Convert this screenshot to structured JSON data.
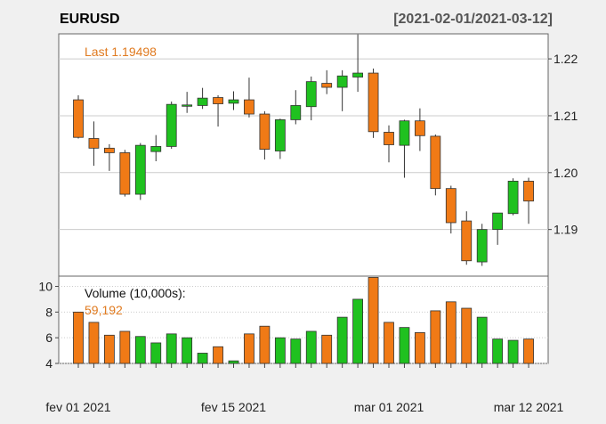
{
  "chart_data": {
    "type": "candlestick",
    "title": "EURUSD",
    "date_range": "[2021-02-01/2021-03-12]",
    "last_label": "Last 1.19498",
    "volume_label": "Volume (10,000s):",
    "volume_last": "59,192",
    "colors": {
      "up": "#1fc11f",
      "down": "#f07a16",
      "background": "#f0f0f0",
      "panel": "#ffffff",
      "grid": "#cccccc"
    },
    "price_axis": {
      "ticks": [
        1.19,
        1.2,
        1.21,
        1.22
      ],
      "tick_labels": [
        "1.19",
        "1.20",
        "1.21",
        "1.22"
      ],
      "range": [
        1.1818,
        1.2244
      ]
    },
    "volume_axis": {
      "ticks": [
        4,
        6,
        8,
        10
      ],
      "tick_labels": [
        "4",
        "6",
        "8",
        "10"
      ],
      "range": [
        4,
        10.8
      ]
    },
    "x_labels": [
      {
        "index": 0,
        "label": "fev 01 2021"
      },
      {
        "index": 10,
        "label": "fev 15 2021"
      },
      {
        "index": 20,
        "label": "mar 01 2021"
      },
      {
        "index": 29,
        "label": "mar 12 2021"
      }
    ],
    "candles": [
      {
        "date": "2021-02-01",
        "open": 1.2128,
        "high": 1.2136,
        "low": 1.206,
        "close": 1.2062,
        "volume": 8.0
      },
      {
        "date": "2021-02-02",
        "open": 1.206,
        "high": 1.209,
        "low": 1.2012,
        "close": 1.2043,
        "volume": 7.2
      },
      {
        "date": "2021-02-03",
        "open": 1.2043,
        "high": 1.205,
        "low": 1.2003,
        "close": 1.2035,
        "volume": 6.2
      },
      {
        "date": "2021-02-04",
        "open": 1.2035,
        "high": 1.204,
        "low": 1.1958,
        "close": 1.1962,
        "volume": 6.5
      },
      {
        "date": "2021-02-05",
        "open": 1.1962,
        "high": 1.2052,
        "low": 1.1952,
        "close": 1.2048,
        "volume": 6.1
      },
      {
        "date": "2021-02-08",
        "open": 1.2037,
        "high": 1.2066,
        "low": 1.202,
        "close": 1.2046,
        "volume": 5.6
      },
      {
        "date": "2021-02-09",
        "open": 1.2046,
        "high": 1.2125,
        "low": 1.2042,
        "close": 1.212,
        "volume": 6.3
      },
      {
        "date": "2021-02-10",
        "open": 1.2117,
        "high": 1.2142,
        "low": 1.2105,
        "close": 1.2119,
        "volume": 6.0
      },
      {
        "date": "2021-02-11",
        "open": 1.2118,
        "high": 1.2149,
        "low": 1.2112,
        "close": 1.2131,
        "volume": 4.8
      },
      {
        "date": "2021-02-12",
        "open": 1.2132,
        "high": 1.2136,
        "low": 1.2081,
        "close": 1.2121,
        "volume": 5.3
      },
      {
        "date": "2021-02-15",
        "open": 1.2122,
        "high": 1.2143,
        "low": 1.211,
        "close": 1.2128,
        "volume": 4.2
      },
      {
        "date": "2021-02-16",
        "open": 1.2128,
        "high": 1.2167,
        "low": 1.2097,
        "close": 1.2103,
        "volume": 6.3
      },
      {
        "date": "2021-02-17",
        "open": 1.2103,
        "high": 1.2108,
        "low": 1.2023,
        "close": 1.2041,
        "volume": 6.9
      },
      {
        "date": "2021-02-18",
        "open": 1.2038,
        "high": 1.2095,
        "low": 1.2024,
        "close": 1.2093,
        "volume": 6.0
      },
      {
        "date": "2021-02-19",
        "open": 1.2093,
        "high": 1.2145,
        "low": 1.2085,
        "close": 1.2118,
        "volume": 5.9
      },
      {
        "date": "2021-02-22",
        "open": 1.2116,
        "high": 1.2169,
        "low": 1.2092,
        "close": 1.216,
        "volume": 6.5
      },
      {
        "date": "2021-02-23",
        "open": 1.2157,
        "high": 1.218,
        "low": 1.2138,
        "close": 1.215,
        "volume": 6.2
      },
      {
        "date": "2021-02-24",
        "open": 1.215,
        "high": 1.218,
        "low": 1.2108,
        "close": 1.217,
        "volume": 7.6
      },
      {
        "date": "2021-02-25",
        "open": 1.2168,
        "high": 1.2243,
        "low": 1.2142,
        "close": 1.2175,
        "volume": 9.0
      },
      {
        "date": "2021-02-26",
        "open": 1.2175,
        "high": 1.2183,
        "low": 1.2061,
        "close": 1.2072,
        "volume": 10.7
      },
      {
        "date": "2021-03-01",
        "open": 1.2071,
        "high": 1.2083,
        "low": 1.2018,
        "close": 1.2049,
        "volume": 7.2
      },
      {
        "date": "2021-03-02",
        "open": 1.2048,
        "high": 1.2093,
        "low": 1.1991,
        "close": 1.2091,
        "volume": 6.8
      },
      {
        "date": "2021-03-03",
        "open": 1.2091,
        "high": 1.2113,
        "low": 1.2038,
        "close": 1.2065,
        "volume": 6.4
      },
      {
        "date": "2021-03-04",
        "open": 1.2064,
        "high": 1.2067,
        "low": 1.196,
        "close": 1.1972,
        "volume": 8.1
      },
      {
        "date": "2021-03-05",
        "open": 1.1972,
        "high": 1.1977,
        "low": 1.1893,
        "close": 1.1912,
        "volume": 8.8
      },
      {
        "date": "2021-03-08",
        "open": 1.1915,
        "high": 1.1932,
        "low": 1.1838,
        "close": 1.1845,
        "volume": 8.3
      },
      {
        "date": "2021-03-09",
        "open": 1.1843,
        "high": 1.191,
        "low": 1.1836,
        "close": 1.19,
        "volume": 7.6
      },
      {
        "date": "2021-03-10",
        "open": 1.19,
        "high": 1.1929,
        "low": 1.1873,
        "close": 1.1929,
        "volume": 5.9
      },
      {
        "date": "2021-03-11",
        "open": 1.1928,
        "high": 1.199,
        "low": 1.1925,
        "close": 1.1985,
        "volume": 5.8
      },
      {
        "date": "2021-03-12",
        "open": 1.1985,
        "high": 1.1991,
        "low": 1.191,
        "close": 1.195,
        "volume": 5.9
      }
    ]
  }
}
